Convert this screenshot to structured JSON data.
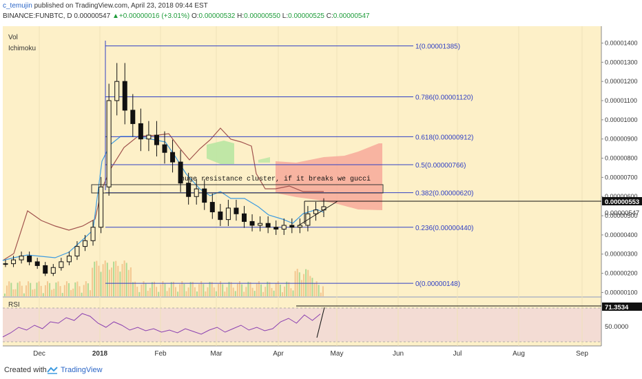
{
  "header": {
    "author": "c_temujin",
    "published_text": " published on TradingView.com, April 23, 2018 09:44 EST",
    "symbol": "BINANCE:FUNBTC, D",
    "last": "0.00000547",
    "change": "+0.00000016 (+3.01%)",
    "open_label": "O:",
    "open": "0.00000532",
    "high_label": "H:",
    "high": "0.00000550",
    "low_label": "L:",
    "low": "0.00000525",
    "close_label": "C:",
    "close": "0.00000547"
  },
  "indicators": {
    "vol": "Vol",
    "ichimoku": "Ichimoku",
    "rsi": "RSI"
  },
  "annotation": "huge resistance cluster, if it breaks we gucci",
  "fib_labels": [
    "1(0.00001385)",
    "0.786(0.00001120)",
    "0.618(0.00000912)",
    "0.5(0.00000766)",
    "0.382(0.00000620)",
    "0.236(0.00000440)",
    "0(0.00000148)"
  ],
  "price_scale": [
    "0.00001400",
    "0.00001300",
    "0.00001200",
    "0.00001100",
    "0.00001000",
    "0.00000900",
    "0.00000800",
    "0.00000700",
    "0.00000600",
    "0.00000500",
    "0.00000400",
    "0.00000300",
    "0.00000200",
    "0.00000100"
  ],
  "price_tags": {
    "current": "0.00000553",
    "close": "0.00000547"
  },
  "rsi_scale": {
    "value": "71.3534",
    "mid": "50.0000"
  },
  "time_axis": [
    "Dec",
    "2018",
    "Feb",
    "Mar",
    "Apr",
    "May",
    "Jun",
    "Jul",
    "Aug",
    "Sep"
  ],
  "footer": {
    "created_with": "Created with",
    "brand": "TradingView"
  },
  "colors": {
    "chart_bg": "#fdf0c8",
    "fib": "#2f3fc4",
    "kijun": "#a0524d",
    "tenkan": "#3d9be0",
    "cloud_red": "#f7a99a",
    "cloud_green": "#b9e6a2",
    "rsi_line": "#8a3fb0",
    "rsi_band": "#f3dcd4"
  },
  "chart_data": {
    "type": "candlestick",
    "symbol": "BINANCE:FUNBTC",
    "interval": "D",
    "ylim": [
      8e-07,
      1.47e-05
    ],
    "fib_levels": [
      {
        "ratio": "1",
        "price": 1.385e-05
      },
      {
        "ratio": "0.786",
        "price": 1.12e-05
      },
      {
        "ratio": "0.618",
        "price": 9.12e-06
      },
      {
        "ratio": "0.5",
        "price": 7.66e-06
      },
      {
        "ratio": "0.382",
        "price": 6.2e-06
      },
      {
        "ratio": "0.236",
        "price": 4.4e-06
      },
      {
        "ratio": "0",
        "price": 1.48e-06
      }
    ],
    "close_series": [
      2.5e-06,
      2.7e-06,
      2.9e-06,
      2.6e-06,
      2.4e-06,
      2e-06,
      2.3e-06,
      2.6e-06,
      2.9e-06,
      3.4e-06,
      3.7e-06,
      4.4e-06,
      6.5e-06,
      1.1e-05,
      1.2e-05,
      1.05e-05,
      9.8e-06,
      9e-06,
      9.2e-06,
      8.7e-06,
      8.3e-06,
      7.8e-06,
      6.7e-06,
      6e-06,
      6.4e-06,
      5.7e-06,
      5.2e-06,
      4.8e-06,
      5.4e-06,
      5.1e-06,
      4.7e-06,
      4.5e-06,
      4.6e-06,
      4.4e-06,
      4.3e-06,
      4.5e-06,
      4.4e-06,
      4.5e-06,
      5.1e-06,
      5.3e-06,
      5.47e-06
    ],
    "rsi_series": [
      38,
      44,
      52,
      48,
      55,
      50,
      60,
      58,
      66,
      62,
      72,
      68,
      58,
      52,
      60,
      55,
      48,
      52,
      47,
      50,
      45,
      48,
      44,
      50,
      46,
      42,
      48,
      52,
      45,
      50,
      55,
      48,
      52,
      47,
      50,
      60,
      65,
      58,
      70,
      62,
      71.35
    ]
  }
}
